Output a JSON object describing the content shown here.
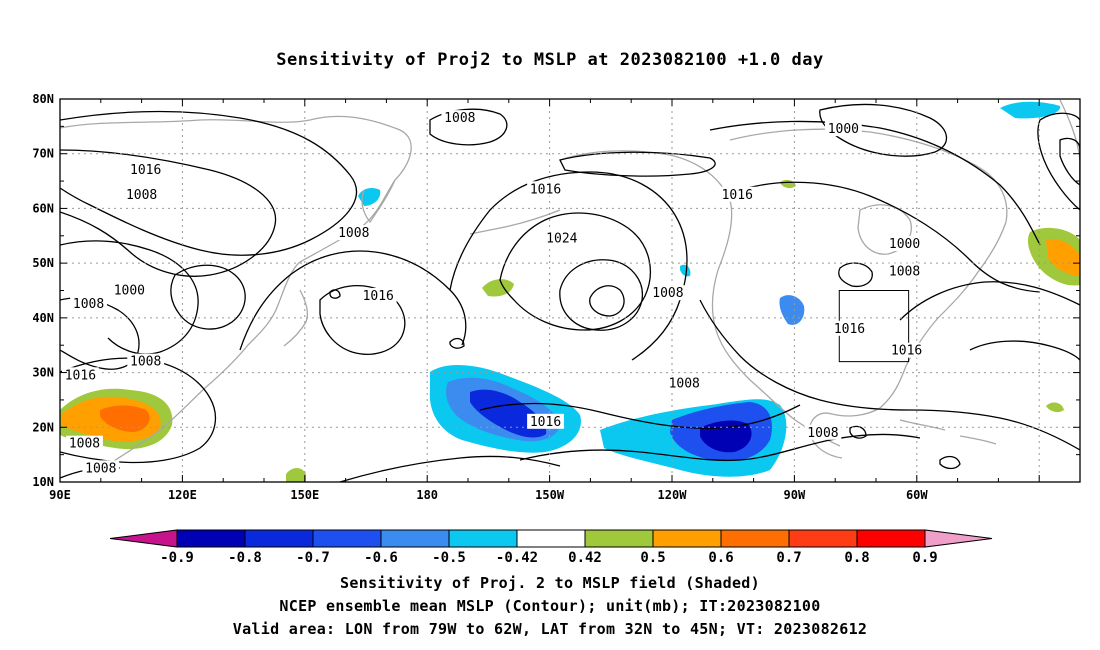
{
  "title": "Sensitivity of Proj2 to MSLP at 2023082100 +1.0 day",
  "map": {
    "lon_labels": [
      "90E",
      "120E",
      "150E",
      "180",
      "150W",
      "120W",
      "90W",
      "60W"
    ],
    "lat_labels": [
      "80N",
      "70N",
      "60N",
      "50N",
      "40N",
      "30N",
      "20N",
      "10N"
    ],
    "contour_labels": [
      {
        "text": "1008",
        "lon": -172,
        "lat": 76.5
      },
      {
        "text": "1016",
        "lon": 111,
        "lat": 67
      },
      {
        "text": "1008",
        "lon": 110,
        "lat": 62.5
      },
      {
        "text": "1016",
        "lon": -151,
        "lat": 63.5
      },
      {
        "text": "1016",
        "lon": -104,
        "lat": 62.5
      },
      {
        "text": "1000",
        "lon": -78,
        "lat": 74.5
      },
      {
        "text": "1024",
        "lon": -147,
        "lat": 54.5
      },
      {
        "text": "1008",
        "lon": 162,
        "lat": 55.5
      },
      {
        "text": "1016",
        "lon": 168,
        "lat": 44
      },
      {
        "text": "1000",
        "lon": 107,
        "lat": 45
      },
      {
        "text": "1008",
        "lon": 97,
        "lat": 42.5
      },
      {
        "text": "1008",
        "lon": -121,
        "lat": 44.5
      },
      {
        "text": "1000",
        "lon": -63,
        "lat": 53.5
      },
      {
        "text": "1008",
        "lon": -63,
        "lat": 48.5
      },
      {
        "text": "1016",
        "lon": -76.5,
        "lat": 38
      },
      {
        "text": "1016",
        "lon": -62.5,
        "lat": 34
      },
      {
        "text": "1008",
        "lon": 111,
        "lat": 32
      },
      {
        "text": "1016",
        "lon": 95,
        "lat": 29.5
      },
      {
        "text": "1008",
        "lon": -117,
        "lat": 28
      },
      {
        "text": "1016",
        "lon": -151,
        "lat": 21
      },
      {
        "text": "1008",
        "lon": 96,
        "lat": 17
      },
      {
        "text": "1008",
        "lon": 100,
        "lat": 12.5
      },
      {
        "text": "1008",
        "lon": -83,
        "lat": 19
      }
    ],
    "valid_area": {
      "lon_min": -79,
      "lon_max": -62,
      "lat_min": 32,
      "lat_max": 45
    }
  },
  "colorbar": {
    "labels": [
      "-0.9",
      "-0.8",
      "-0.7",
      "-0.6",
      "-0.5",
      "-0.42",
      "0.42",
      "0.5",
      "0.6",
      "0.7",
      "0.8",
      "0.9"
    ],
    "colors": [
      "#0000b4",
      "#0a28dc",
      "#1e50f0",
      "#3c8cf0",
      "#0ac8f0",
      "#ffffff",
      "#a0c83c",
      "#ffa000",
      "#ff6e00",
      "#ff3c14",
      "#ff0000"
    ],
    "low_end_color": "#c8148c",
    "high_end_color": "#f0a0c8"
  },
  "captions": {
    "line1": "Sensitivity of Proj. 2 to MSLP field (Shaded)",
    "line2": "NCEP ensemble mean MSLP (Contour); unit(mb); IT:2023082100",
    "line3": "Valid area: LON from 79W to 62W, LAT from 32N to 45N; VT: 2023082612"
  }
}
